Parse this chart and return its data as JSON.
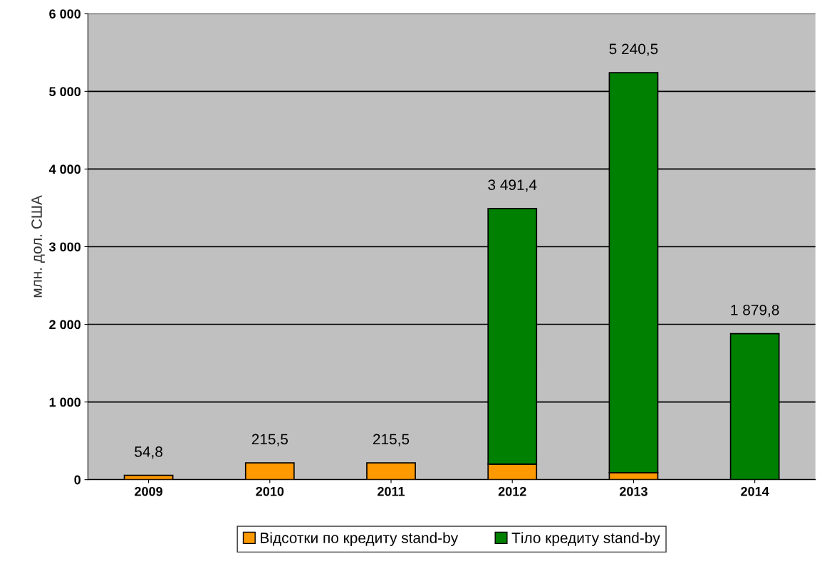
{
  "chart_data": {
    "type": "bar",
    "stacked": true,
    "ylabel": "млн. дол. США",
    "categories": [
      "2009",
      "2010",
      "2011",
      "2012",
      "2013",
      "2014"
    ],
    "series": [
      {
        "name": "Відсотки по кредиту stand-by",
        "color": "#ff9900",
        "values": [
          54.8,
          215.5,
          215.5,
          200,
          90,
          null
        ]
      },
      {
        "name": "Тіло кредиту stand-by",
        "color": "#008000",
        "values": [
          null,
          null,
          null,
          3291.4,
          5150.5,
          1879.8
        ]
      }
    ],
    "totals": [
      "54,8",
      "215,5",
      "215,5",
      "3 491,4",
      "5 240,5",
      "1 879,8"
    ],
    "ylim": [
      0,
      6000
    ],
    "yticks": [
      0,
      {
        "value": 1000,
        "label": "1 000"
      },
      {
        "value": 2000,
        "label": "2 000"
      },
      {
        "value": 3000,
        "label": "3 000"
      },
      {
        "value": 4000,
        "label": "4 000"
      },
      {
        "value": 5000,
        "label": "5 000"
      },
      {
        "value": 6000,
        "label": "6 000"
      }
    ],
    "grid": "y",
    "legend": "bottom"
  }
}
